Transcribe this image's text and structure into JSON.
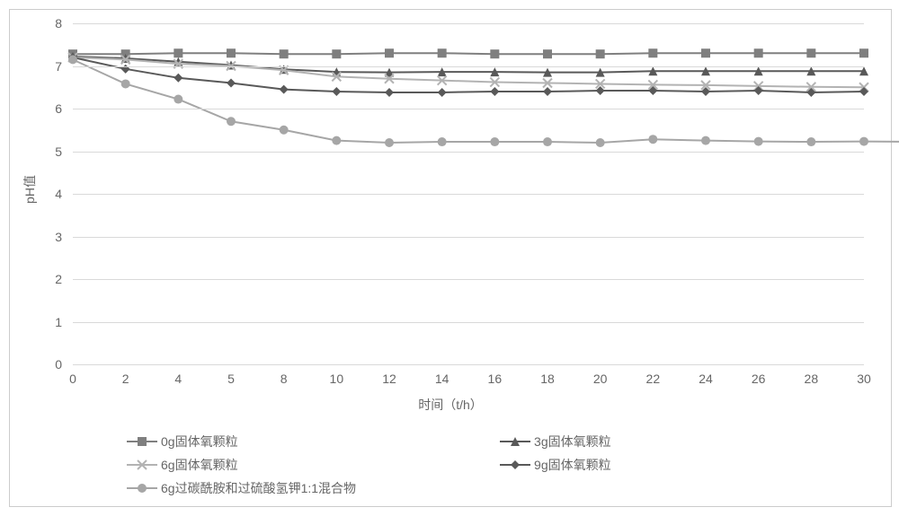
{
  "chart": {
    "type": "line",
    "background_color": "#ffffff",
    "grid_color": "#d9d9d9",
    "text_color": "#666666",
    "line_width": 2,
    "marker_size": 10,
    "ylabel": "pH值",
    "xlabel": "时间（t/h）",
    "label_fontsize": 14,
    "tick_fontsize": 14,
    "ylim": [
      0,
      8
    ],
    "ytick_step": 1,
    "yticks": [
      0,
      1,
      2,
      3,
      4,
      5,
      6,
      7,
      8
    ],
    "xticks": [
      0,
      2,
      4,
      5,
      8,
      10,
      12,
      14,
      16,
      18,
      20,
      22,
      24,
      26,
      28,
      30
    ],
    "series": [
      {
        "key": "s0",
        "label": "0g固体氧颗粒",
        "marker": "square",
        "color": "#7f7f7f",
        "values": [
          7.28,
          7.28,
          7.3,
          7.3,
          7.28,
          7.28,
          7.3,
          7.3,
          7.28,
          7.28,
          7.28,
          7.3,
          7.3,
          7.3,
          7.3,
          7.3
        ]
      },
      {
        "key": "s3",
        "label": "3g固体氧颗粒",
        "marker": "triangle",
        "color": "#595959",
        "values": [
          7.22,
          7.18,
          7.1,
          7.02,
          6.92,
          6.86,
          6.85,
          6.86,
          6.86,
          6.85,
          6.85,
          6.88,
          6.88,
          6.88,
          6.88,
          6.88
        ]
      },
      {
        "key": "s6",
        "label": "6g固体氧颗粒",
        "marker": "cross",
        "color": "#b3b3b3",
        "values": [
          7.2,
          7.15,
          7.05,
          7.0,
          6.9,
          6.75,
          6.7,
          6.66,
          6.62,
          6.6,
          6.58,
          6.56,
          6.55,
          6.53,
          6.51,
          6.5
        ]
      },
      {
        "key": "s9",
        "label": "9g固体氧颗粒",
        "marker": "diamond",
        "color": "#595959",
        "values": [
          7.2,
          6.93,
          6.72,
          6.6,
          6.45,
          6.4,
          6.38,
          6.38,
          6.4,
          6.4,
          6.42,
          6.42,
          6.4,
          6.42,
          6.38,
          6.4
        ]
      },
      {
        "key": "smix",
        "label": "6g过碳酰胺和过硫酸氢钾1:1混合物",
        "marker": "circle",
        "color": "#a6a6a6",
        "values": [
          7.15,
          6.58,
          6.22,
          5.7,
          5.5,
          5.25,
          5.2,
          5.22,
          5.22,
          5.22,
          5.2,
          5.28,
          5.25,
          5.23,
          5.22,
          5.23,
          5.22
        ]
      }
    ]
  },
  "legend_layout": {
    "rows": [
      [
        "s0",
        "s3"
      ],
      [
        "s6",
        "s9"
      ],
      [
        "smix",
        null
      ]
    ]
  }
}
